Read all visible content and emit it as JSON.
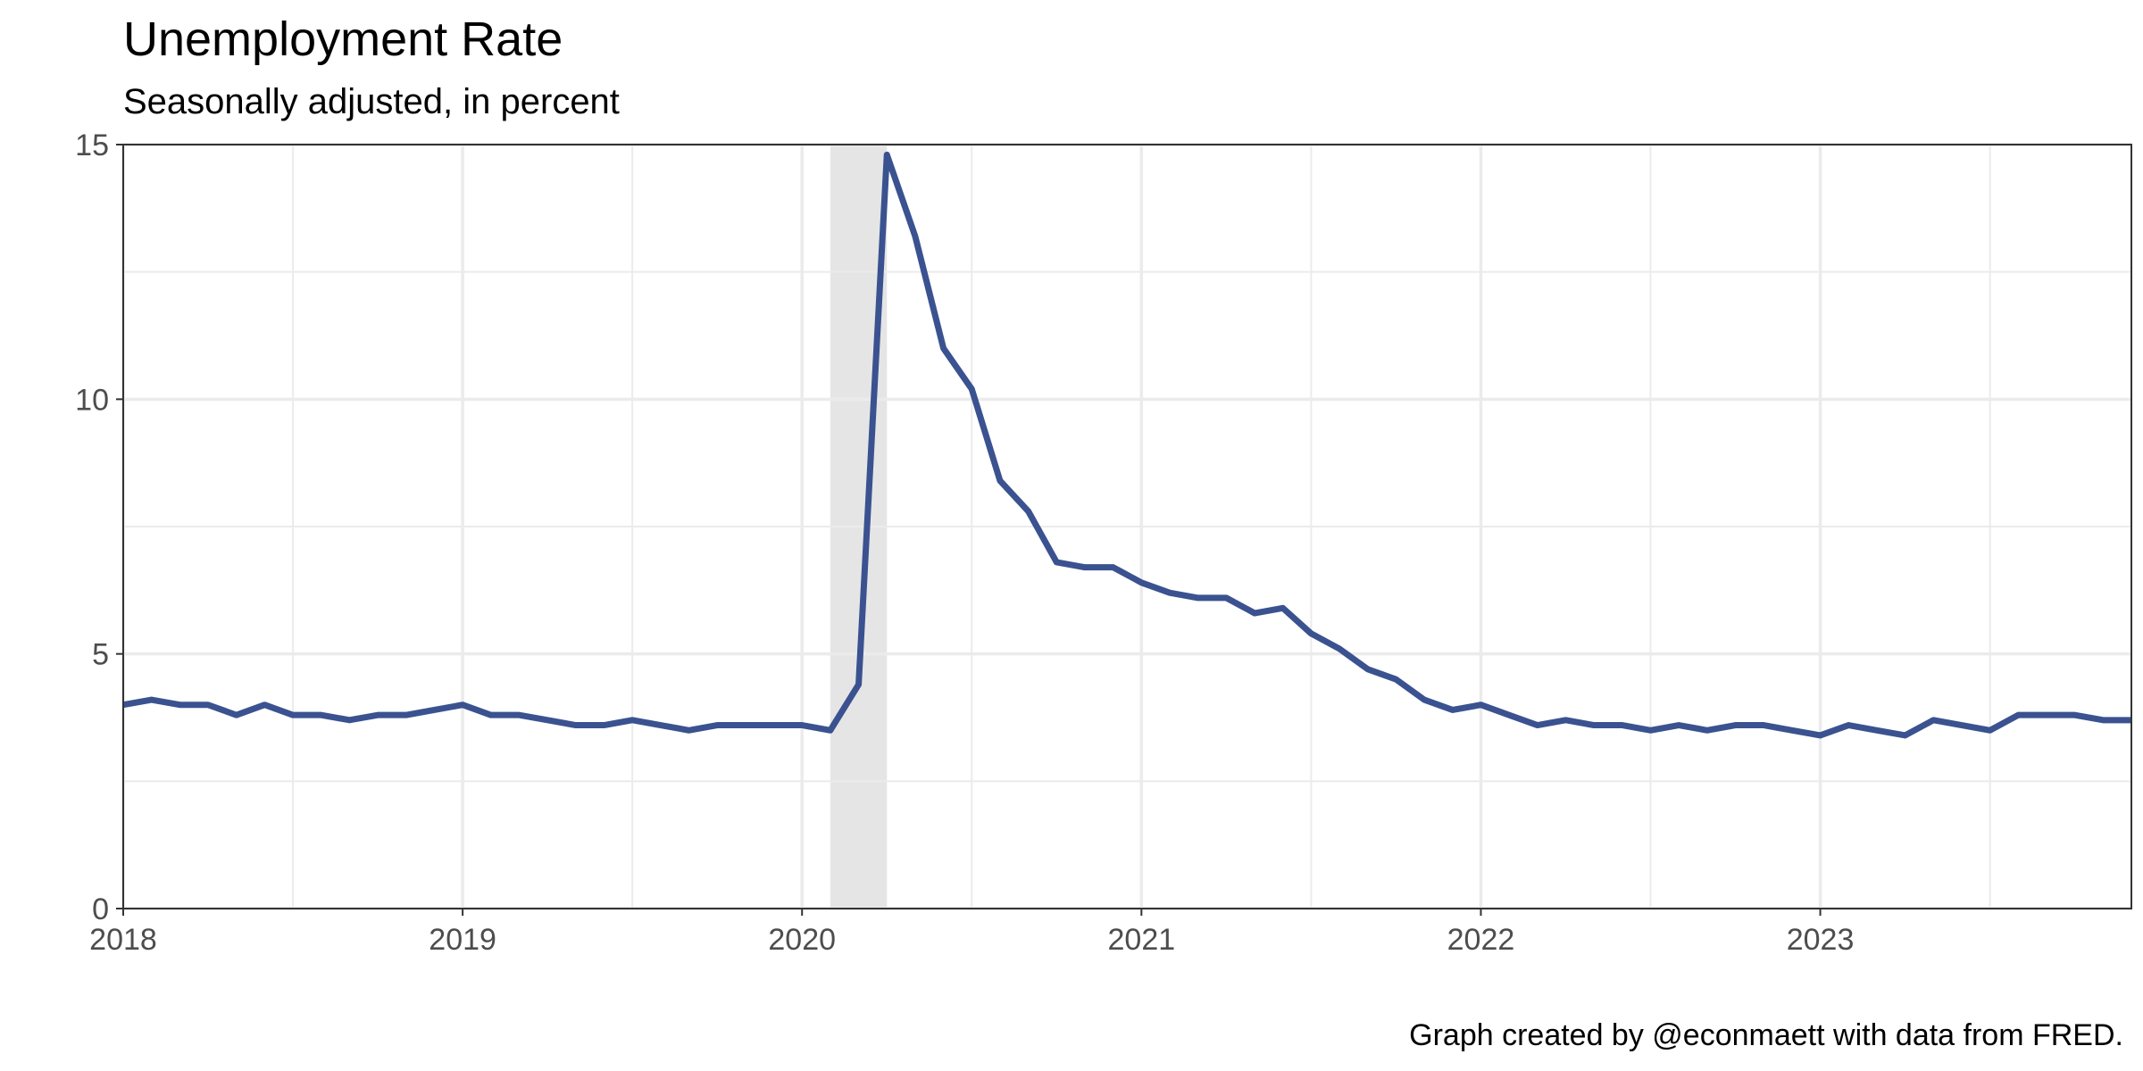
{
  "chart_data": {
    "type": "line",
    "title": "Unemployment Rate",
    "subtitle": "Seasonally adjusted, in percent",
    "caption": "Graph created by @econmaett with data from FRED.",
    "xlabel": "",
    "ylabel": "",
    "x_start": "2018-01",
    "x_end": "2023-12",
    "xlim": [
      "2018-01",
      "2023-12"
    ],
    "ylim": [
      0,
      15
    ],
    "x_ticks": [
      {
        "x": "2018-01",
        "label": "2018"
      },
      {
        "x": "2019-01",
        "label": "2019"
      },
      {
        "x": "2020-01",
        "label": "2020"
      },
      {
        "x": "2021-01",
        "label": "2021"
      },
      {
        "x": "2022-01",
        "label": "2022"
      },
      {
        "x": "2023-01",
        "label": "2023"
      }
    ],
    "y_ticks": [
      {
        "y": 0,
        "label": "0"
      },
      {
        "y": 5,
        "label": "5"
      },
      {
        "y": 10,
        "label": "10"
      },
      {
        "y": 15,
        "label": "15"
      }
    ],
    "grid": true,
    "recession_band": {
      "start": "2020-02",
      "end": "2020-04",
      "color": "#e5e5e5"
    },
    "colors": {
      "line": "#3b5290",
      "grid": "#ebebeb",
      "axis": "#333333",
      "tick_text": "#4d4d4d"
    },
    "series": [
      {
        "values": [
          4.0,
          4.1,
          4.0,
          4.0,
          3.8,
          4.0,
          3.8,
          3.8,
          3.7,
          3.8,
          3.8,
          3.9,
          4.0,
          3.8,
          3.8,
          3.7,
          3.6,
          3.6,
          3.7,
          3.6,
          3.5,
          3.6,
          3.6,
          3.6,
          3.6,
          3.5,
          4.4,
          14.8,
          13.2,
          11.0,
          10.2,
          8.4,
          7.8,
          6.8,
          6.7,
          6.7,
          6.4,
          6.2,
          6.1,
          6.1,
          5.8,
          5.9,
          5.4,
          5.1,
          4.7,
          4.5,
          4.1,
          3.9,
          4.0,
          3.8,
          3.6,
          3.7,
          3.6,
          3.6,
          3.5,
          3.6,
          3.5,
          3.6,
          3.6,
          3.5,
          3.4,
          3.6,
          3.5,
          3.4,
          3.7,
          3.6,
          3.5,
          3.8,
          3.8,
          3.8,
          3.7,
          3.7
        ]
      }
    ]
  }
}
